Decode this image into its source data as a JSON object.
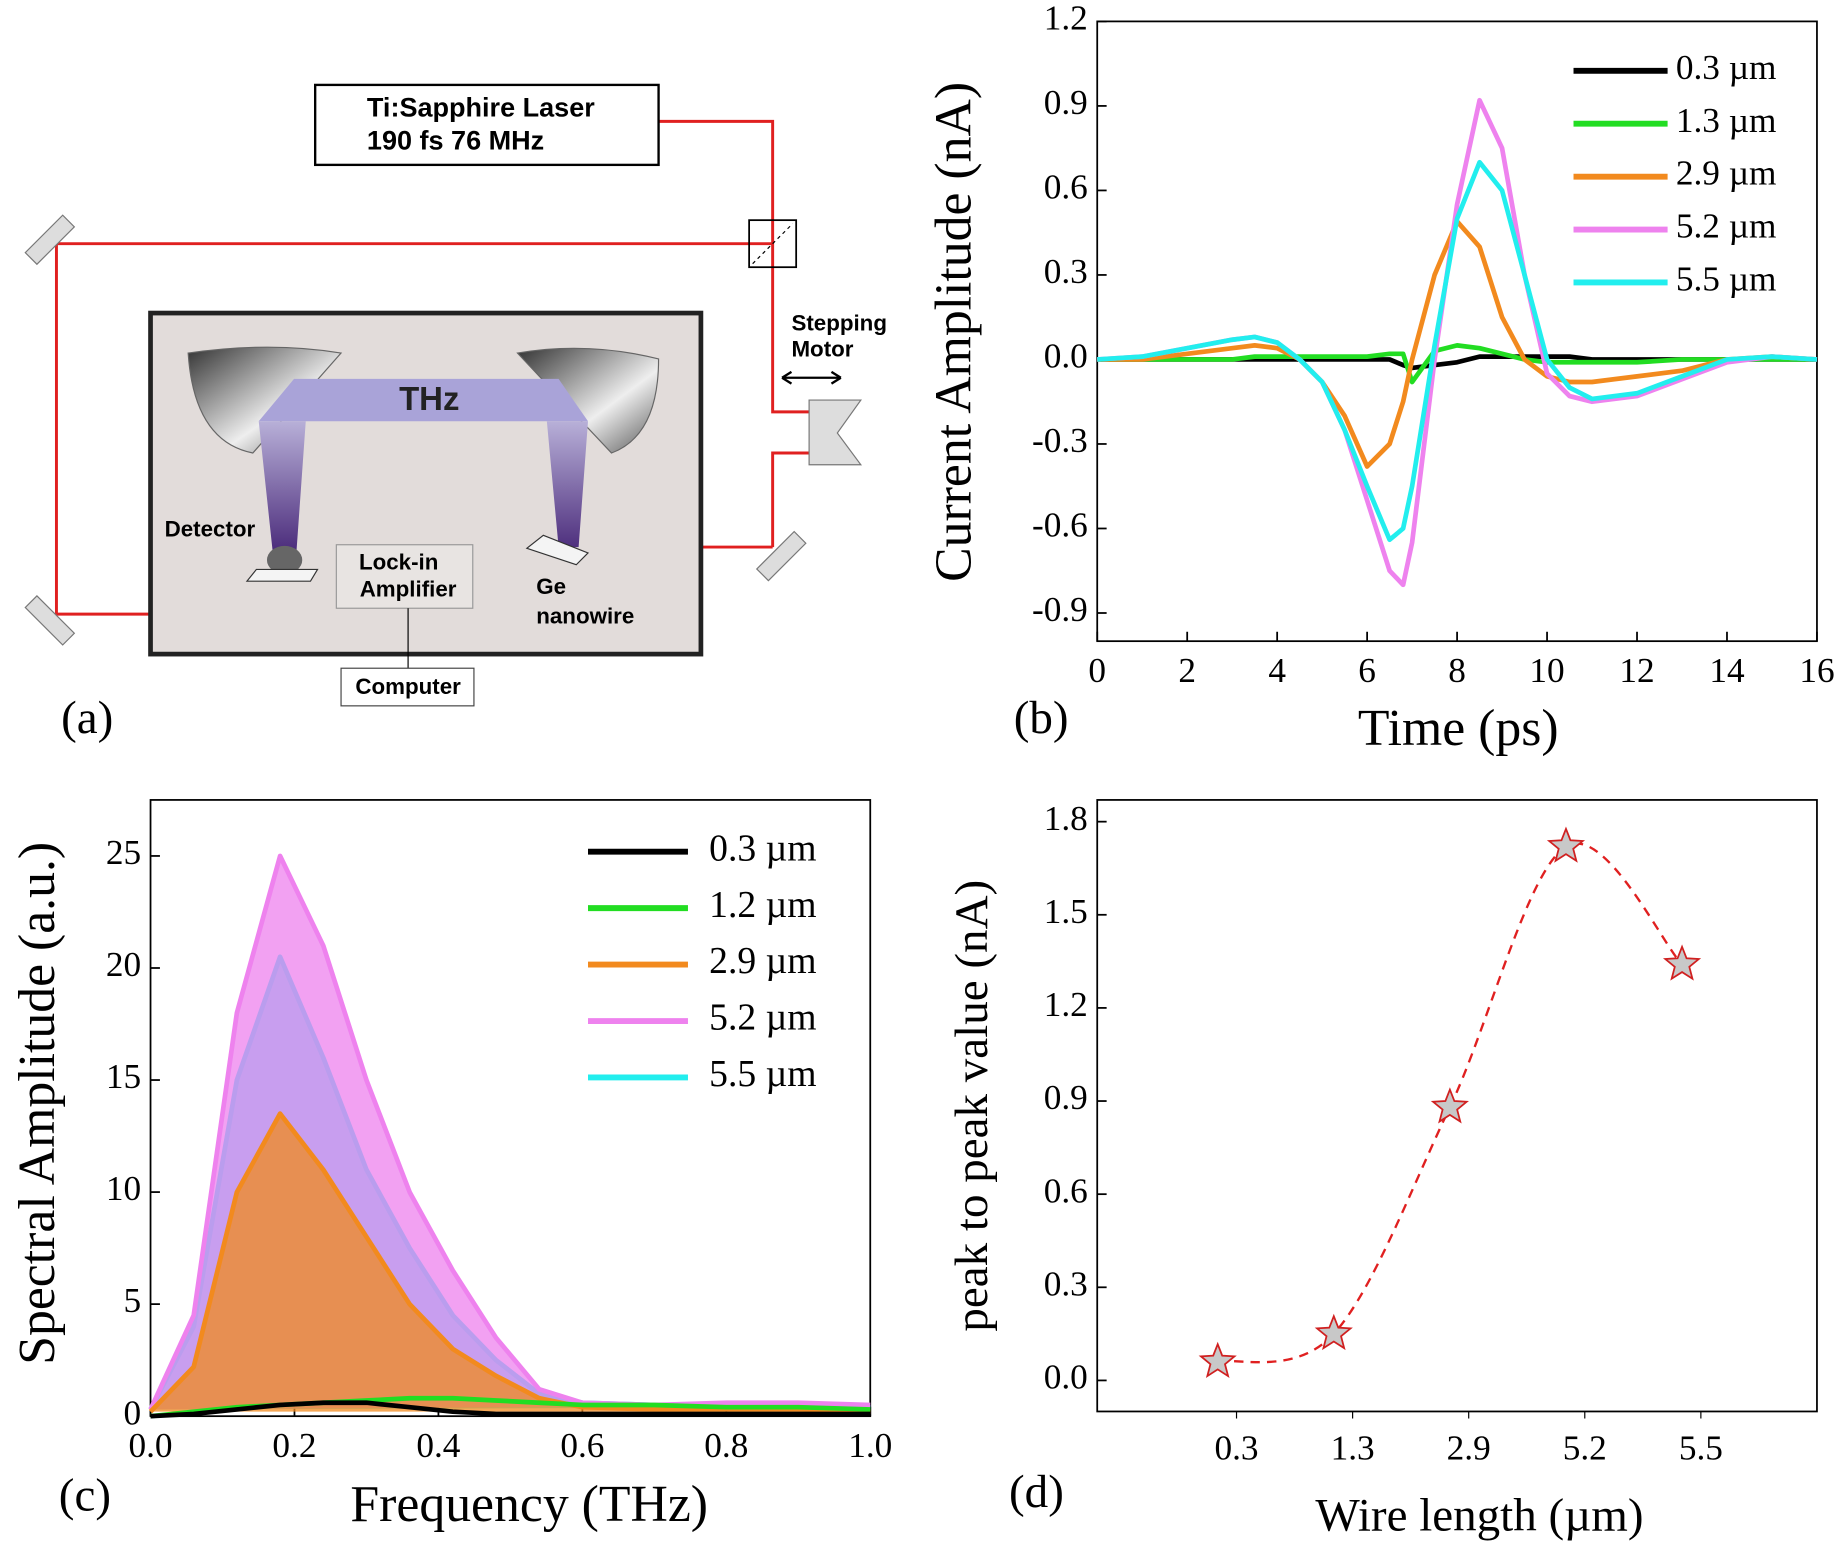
{
  "diagram": {
    "panel_label": "(a)",
    "laser_line1": "Ti:Sapphire Laser",
    "laser_line2": "190 fs 76 MHz",
    "motor_line1": "Stepping",
    "motor_line2": "Motor",
    "thz": "THz",
    "detector": "Detector",
    "lockin_line1": "Lock-in",
    "lockin_line2": "Amplifier",
    "sample_line1": "Ge",
    "sample_line2": "nanowire",
    "computer": "Computer"
  },
  "chart_data": [
    {
      "type": "line",
      "panel_label": "(b)",
      "xlabel": "Time (ps)",
      "ylabel": "Current Amplitude (nA)",
      "xlim": [
        0,
        16
      ],
      "ylim": [
        -1.0,
        1.2
      ],
      "xticks": [
        0,
        2,
        4,
        6,
        8,
        10,
        12,
        14,
        16
      ],
      "yticks": [
        -0.9,
        -0.6,
        -0.3,
        {
          "value": 0,
          "label": "0.0"
        },
        0.3,
        0.6,
        0.9,
        1.2
      ],
      "x": [
        0,
        1,
        2,
        3,
        3.5,
        4,
        4.5,
        5,
        5.5,
        6,
        6.5,
        6.8,
        7,
        7.5,
        8,
        8.5,
        9,
        9.5,
        10,
        10.5,
        11,
        12,
        13,
        14,
        15,
        16
      ],
      "series": [
        {
          "name": "0.3 µm",
          "color": "#000000",
          "values": [
            0,
            0,
            0,
            0,
            0,
            0,
            0,
            0,
            0,
            0,
            0,
            -0.02,
            -0.03,
            -0.02,
            -0.01,
            0.01,
            0.01,
            0.01,
            0.01,
            0.01,
            0,
            0,
            0,
            0,
            0,
            0
          ]
        },
        {
          "name": "1.3 µm",
          "color": "#22dd22",
          "values": [
            0,
            0,
            0,
            0,
            0.01,
            0.01,
            0.01,
            0.01,
            0.01,
            0.01,
            0.02,
            0.02,
            -0.08,
            0.03,
            0.05,
            0.04,
            0.02,
            0,
            -0.01,
            -0.01,
            -0.01,
            -0.01,
            0,
            0,
            0,
            0
          ]
        },
        {
          "name": "2.9 µm",
          "color": "#f28a1e",
          "values": [
            0,
            0,
            0.02,
            0.04,
            0.05,
            0.04,
            0,
            -0.08,
            -0.2,
            -0.38,
            -0.3,
            -0.15,
            0,
            0.3,
            0.49,
            0.4,
            0.15,
            0,
            -0.06,
            -0.08,
            -0.08,
            -0.06,
            -0.04,
            0,
            0.01,
            0
          ]
        },
        {
          "name": "5.2 µm",
          "color": "#ee82ee",
          "values": [
            0,
            0.01,
            0.04,
            0.07,
            0.08,
            0.06,
            0,
            -0.08,
            -0.25,
            -0.5,
            -0.75,
            -0.8,
            -0.65,
            0,
            0.55,
            0.92,
            0.75,
            0.3,
            -0.05,
            -0.13,
            -0.15,
            -0.13,
            -0.07,
            -0.01,
            0.01,
            0
          ]
        },
        {
          "name": "5.5 µm",
          "color": "#22eeee",
          "values": [
            0,
            0.01,
            0.04,
            0.07,
            0.08,
            0.06,
            0,
            -0.08,
            -0.25,
            -0.45,
            -0.64,
            -0.6,
            -0.45,
            0.05,
            0.5,
            0.7,
            0.6,
            0.3,
            0,
            -0.1,
            -0.14,
            -0.12,
            -0.06,
            0,
            0.01,
            0
          ]
        }
      ]
    },
    {
      "type": "area",
      "panel_label": "(c)",
      "xlabel": "Frequency (THz)",
      "ylabel": "Spectral Amplitude (a.u.)",
      "xlim": [
        0,
        1.0
      ],
      "ylim": [
        0,
        27.5
      ],
      "xticks": [
        {
          "value": 0,
          "label": "0.0"
        },
        0.2,
        0.4,
        0.6,
        0.8,
        {
          "value": 1,
          "label": "1.0"
        }
      ],
      "yticks": [
        0,
        5,
        10,
        15,
        20,
        25
      ],
      "x": [
        0,
        0.06,
        0.12,
        0.18,
        0.24,
        0.3,
        0.36,
        0.42,
        0.48,
        0.54,
        0.6,
        0.7,
        0.8,
        0.9,
        1.0
      ],
      "series": [
        {
          "name": "0.3 µm",
          "color": "#000000",
          "values": [
            0,
            0.1,
            0.3,
            0.5,
            0.6,
            0.6,
            0.4,
            0.2,
            0.1,
            0.1,
            0.1,
            0.1,
            0.1,
            0.1,
            0.1
          ]
        },
        {
          "name": "1.2 µm",
          "color": "#22dd22",
          "values": [
            0,
            0.2,
            0.4,
            0.5,
            0.6,
            0.7,
            0.8,
            0.8,
            0.7,
            0.6,
            0.5,
            0.5,
            0.4,
            0.4,
            0.3
          ]
        },
        {
          "name": "2.9 µm",
          "color": "#f28a1e",
          "filled": true,
          "values": [
            0.2,
            2.2,
            10,
            13.5,
            11,
            8,
            5,
            3,
            1.8,
            0.8,
            0.4,
            0.3,
            0.3,
            0.3,
            0.2
          ]
        },
        {
          "name": "5.2 µm",
          "color": "#ee82ee",
          "filled": true,
          "values": [
            0.3,
            4.5,
            18,
            25,
            21,
            15,
            10,
            6.5,
            3.5,
            1.2,
            0.6,
            0.5,
            0.6,
            0.6,
            0.5
          ]
        },
        {
          "name": "5.5 µm",
          "color": "#22eeee",
          "filled": true,
          "values": [
            0.3,
            4,
            15,
            20.5,
            16,
            11,
            7.5,
            4.5,
            2.5,
            1,
            0.6,
            0.5,
            0.5,
            0.5,
            0.4
          ]
        }
      ]
    },
    {
      "type": "scatter",
      "panel_label": "(d)",
      "xlabel": "Wire length (µm)",
      "ylabel": "peak to peak value (nA)",
      "ylim": [
        -0.1,
        1.87
      ],
      "yticks": [
        {
          "value": 0,
          "label": "0.0"
        },
        0.3,
        0.6,
        0.9,
        1.2,
        1.5,
        1.8
      ],
      "categories": [
        "0.3",
        "1.3",
        "2.9",
        "5.2",
        "5.5"
      ],
      "values": [
        0.06,
        0.15,
        0.88,
        1.72,
        1.34
      ],
      "color": "#c8c8c8",
      "edge_color": "#d02020",
      "curve_color": "#e02020"
    }
  ]
}
